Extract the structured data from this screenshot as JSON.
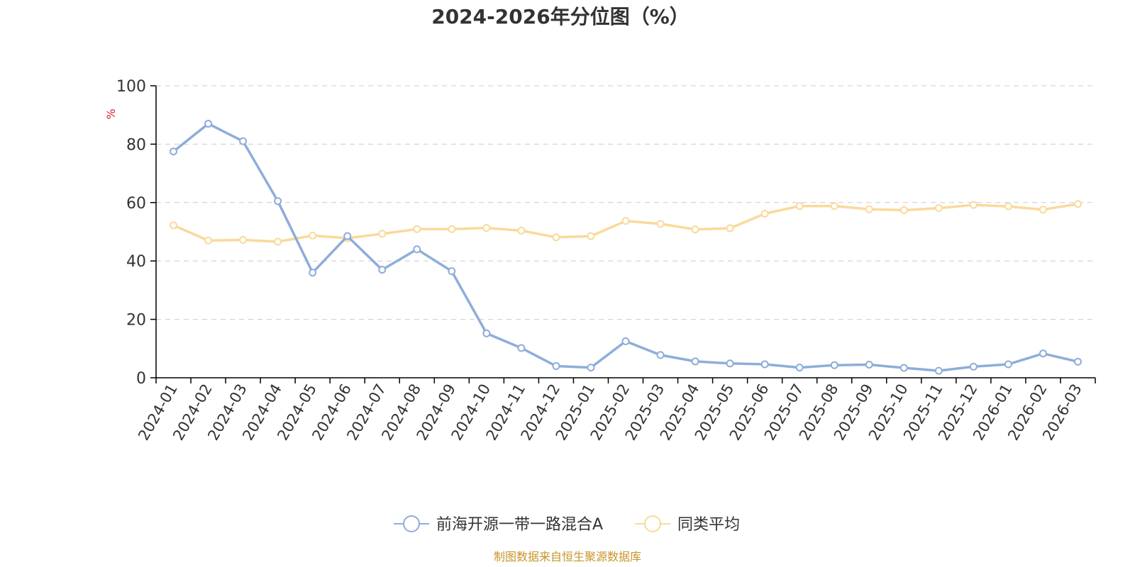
{
  "chart_data": {
    "type": "line",
    "title": "2024-2026年分位图（%）",
    "ylabel": "%",
    "xlabel": "",
    "ylim": [
      0,
      100
    ],
    "yticks": [
      0,
      20,
      40,
      60,
      80,
      100
    ],
    "grid": true,
    "legend_position": "bottom-center",
    "categories": [
      "2024-01",
      "2024-02",
      "2024-03",
      "2024-04",
      "2024-05",
      "2024-06",
      "2024-07",
      "2024-08",
      "2024-09",
      "2024-10",
      "2024-11",
      "2024-12",
      "2025-01",
      "2025-02",
      "2025-03",
      "2025-04",
      "2025-05",
      "2025-06",
      "2025-07",
      "2025-08",
      "2025-09",
      "2025-10",
      "2025-11",
      "2025-12",
      "2026-01",
      "2026-02",
      "2026-03"
    ],
    "series": [
      {
        "name": "前海开源一带一路混合A",
        "color": "#8eadd9",
        "values": [
          77.5,
          87,
          81,
          60.5,
          36,
          48.5,
          37,
          44,
          36.5,
          15.2,
          10.2,
          4,
          3.5,
          12.5,
          7.8,
          5.6,
          4.9,
          4.6,
          3.5,
          4.3,
          4.5,
          3.4,
          2.4,
          3.8,
          4.6,
          8.3,
          5.5
        ]
      },
      {
        "name": "同类平均",
        "color": "#fad99a",
        "values": [
          52.2,
          47,
          47.2,
          46.6,
          48.7,
          47.8,
          49.3,
          50.9,
          50.9,
          51.3,
          50.4,
          48.1,
          48.5,
          53.7,
          52.7,
          50.8,
          51.2,
          56.2,
          58.8,
          58.8,
          57.7,
          57.4,
          58.1,
          59.2,
          58.7,
          57.6,
          59.5
        ]
      }
    ]
  },
  "footer": {
    "source": "制图数据来自恒生聚源数据库"
  }
}
